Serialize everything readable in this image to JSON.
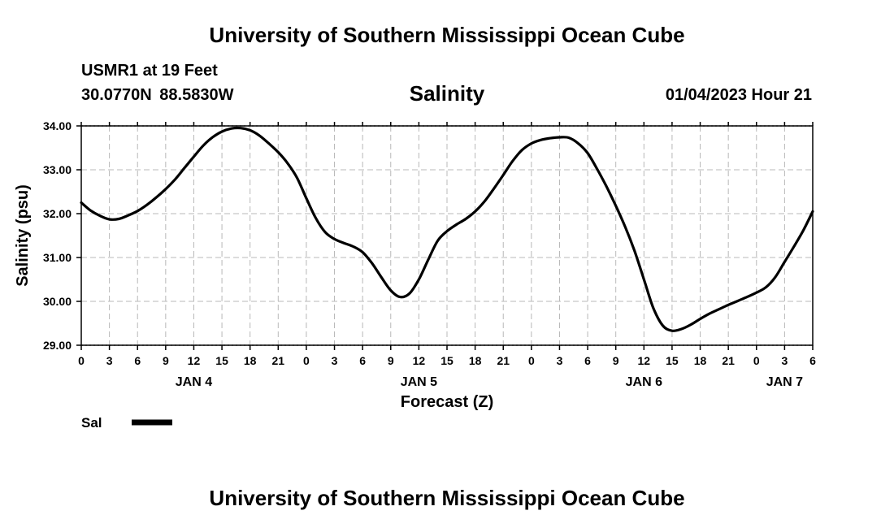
{
  "header": {
    "title": "University of Southern Mississippi Ocean Cube",
    "station": "USMR1 at 19 Feet",
    "coords": "30.0770N  88.5830W",
    "run_time": "01/04/2023 Hour 21"
  },
  "footer": {
    "title": "University of Southern Mississippi Ocean Cube"
  },
  "chart_data": {
    "type": "line",
    "title": "Salinity",
    "xlabel": "Forecast (Z)",
    "ylabel": "Salinity (psu)",
    "x_unit": "forecast hour (from JAN 4 00Z)",
    "xlim": [
      0,
      78
    ],
    "ylim": [
      29.0,
      34.0
    ],
    "grid": true,
    "y_ticks": [
      {
        "value": 29.0,
        "label": "29.00"
      },
      {
        "value": 30.0,
        "label": "30.00"
      },
      {
        "value": 31.0,
        "label": "31.00"
      },
      {
        "value": 32.0,
        "label": "32.00"
      },
      {
        "value": 33.0,
        "label": "33.00"
      },
      {
        "value": 34.0,
        "label": "34.00"
      }
    ],
    "x_tick_labels": [
      "0",
      "3",
      "6",
      "9",
      "12",
      "15",
      "18",
      "21",
      "0",
      "3",
      "6",
      "9",
      "12",
      "15",
      "18",
      "21",
      "0",
      "3",
      "6",
      "9",
      "12",
      "15",
      "18",
      "21",
      "0",
      "3",
      "6"
    ],
    "day_labels": [
      {
        "hour": 12,
        "label": "JAN 4"
      },
      {
        "hour": 36,
        "label": "JAN 5"
      },
      {
        "hour": 60,
        "label": "JAN 6"
      },
      {
        "hour": 75,
        "label": "JAN 7"
      }
    ],
    "legend": {
      "position": "bottom-left",
      "label": "Sal"
    },
    "series": [
      {
        "name": "Sal",
        "color": "#000000",
        "x": [
          0,
          1,
          2,
          3,
          4,
          5,
          6,
          7,
          8,
          9,
          10,
          11,
          12,
          13,
          14,
          15,
          16,
          17,
          18,
          19,
          20,
          21,
          22,
          23,
          24,
          25,
          26,
          27,
          28,
          29,
          30,
          31,
          32,
          33,
          34,
          35,
          36,
          37,
          38,
          39,
          40,
          41,
          42,
          43,
          44,
          45,
          46,
          47,
          48,
          49,
          50,
          51,
          52,
          53,
          54,
          55,
          56,
          57,
          58,
          59,
          60,
          61,
          62,
          63,
          64,
          65,
          66,
          67,
          68,
          69,
          70,
          71,
          72,
          73,
          74,
          75,
          76,
          77,
          78
        ],
        "values": [
          32.25,
          32.07,
          31.95,
          31.87,
          31.88,
          31.96,
          32.06,
          32.2,
          32.37,
          32.56,
          32.78,
          33.04,
          33.3,
          33.55,
          33.74,
          33.87,
          33.94,
          33.95,
          33.9,
          33.78,
          33.6,
          33.4,
          33.15,
          32.82,
          32.35,
          31.9,
          31.58,
          31.42,
          31.33,
          31.25,
          31.12,
          30.87,
          30.55,
          30.25,
          30.1,
          30.18,
          30.5,
          30.95,
          31.38,
          31.6,
          31.75,
          31.88,
          32.05,
          32.28,
          32.57,
          32.88,
          33.2,
          33.45,
          33.6,
          33.68,
          33.72,
          33.74,
          33.73,
          33.6,
          33.38,
          33.02,
          32.62,
          32.18,
          31.7,
          31.15,
          30.5,
          29.85,
          29.45,
          29.33,
          29.37,
          29.47,
          29.6,
          29.72,
          29.82,
          29.92,
          30.01,
          30.1,
          30.2,
          30.32,
          30.55,
          30.9,
          31.25,
          31.62,
          32.05
        ]
      }
    ]
  }
}
